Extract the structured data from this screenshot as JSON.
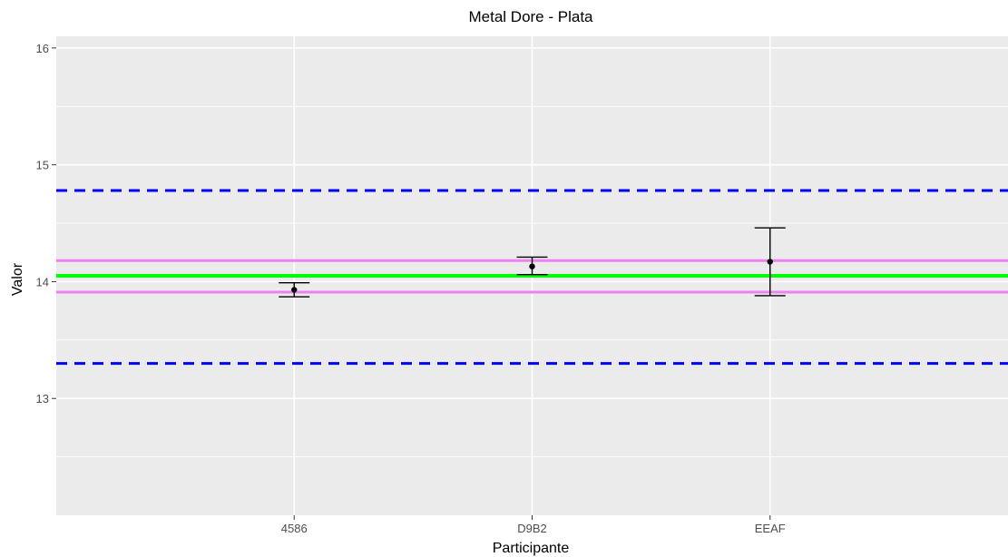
{
  "chart_data": {
    "type": "errorbar",
    "title": "Metal Dore - Plata",
    "xlabel": "Participante",
    "ylabel": "Valor",
    "categories": [
      "4586",
      "D9B2",
      "EEAF"
    ],
    "ylim": [
      12.0,
      16.1
    ],
    "yticks": [
      13,
      14,
      15,
      16
    ],
    "grid": true,
    "points": [
      {
        "category": "4586",
        "value": 13.93,
        "lower": 13.87,
        "upper": 13.99
      },
      {
        "category": "D9B2",
        "value": 14.13,
        "lower": 14.06,
        "upper": 14.21
      },
      {
        "category": "EEAF",
        "value": 14.17,
        "lower": 13.88,
        "upper": 14.46
      }
    ],
    "reference_lines": [
      {
        "value": 14.05,
        "color": "#00ff00",
        "style": "solid"
      },
      {
        "value": 14.18,
        "color": "#ee82ee",
        "style": "solid"
      },
      {
        "value": 13.91,
        "color": "#ee82ee",
        "style": "solid"
      },
      {
        "value": 14.78,
        "color": "#0000ff",
        "style": "dashed"
      },
      {
        "value": 13.3,
        "color": "#0000ff",
        "style": "dashed"
      }
    ],
    "colors": {
      "panel": "#ebebeb",
      "grid": "#ffffff",
      "point": "#000000"
    }
  }
}
